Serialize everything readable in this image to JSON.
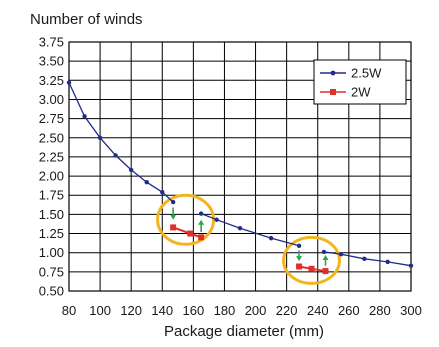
{
  "chart_data": {
    "type": "line",
    "title": "Number of winds",
    "xlabel": "Package diameter (mm)",
    "ylabel": "",
    "xlim": [
      80,
      300
    ],
    "ylim": [
      0.5,
      3.75
    ],
    "grid": true,
    "legend_position": "top-right",
    "x_ticks": [
      "80",
      "100",
      "120",
      "140",
      "160",
      "180",
      "200",
      "220",
      "240",
      "260",
      "280",
      "300"
    ],
    "y_ticks": [
      "0.50",
      "0.75",
      "1.00",
      "1.25",
      "1.50",
      "1.75",
      "2.00",
      "2.25",
      "2.50",
      "2.75",
      "3.00",
      "3.25",
      "3.50",
      "3.75"
    ],
    "series": [
      {
        "name": "2.5W",
        "color": "#1f2d8c",
        "marker": "circle",
        "segments": [
          [
            [
              80,
              3.22
            ],
            [
              90,
              2.78
            ],
            [
              100,
              2.5
            ],
            [
              110,
              2.27
            ],
            [
              120,
              2.08
            ],
            [
              130,
              1.92
            ],
            [
              140,
              1.79
            ],
            [
              147,
              1.66
            ]
          ],
          [
            [
              165,
              1.51
            ],
            [
              175,
              1.43
            ],
            [
              190,
              1.32
            ],
            [
              210,
              1.19
            ],
            [
              228,
              1.09
            ]
          ],
          [
            [
              244,
              1.01
            ],
            [
              255,
              0.98
            ],
            [
              270,
              0.92
            ],
            [
              285,
              0.88
            ],
            [
              300,
              0.83
            ]
          ]
        ]
      },
      {
        "name": "2W",
        "color": "#e0302a",
        "marker": "square",
        "segments": [
          [
            [
              147,
              1.33
            ],
            [
              158,
              1.25
            ],
            [
              165,
              1.2
            ]
          ],
          [
            [
              228,
              0.82
            ],
            [
              236,
              0.79
            ],
            [
              245,
              0.76
            ]
          ]
        ]
      }
    ],
    "annotations": {
      "circle_color": "#f2b51d",
      "arrow_color": "#2aa64a",
      "ellipses": [
        {
          "cx": 155,
          "cy": 1.43,
          "rx": 18,
          "ry": 0.32
        },
        {
          "cx": 236,
          "cy": 0.9,
          "rx": 18,
          "ry": 0.3
        }
      ],
      "arrows": [
        {
          "x": 147,
          "from": 1.59,
          "to": 1.43
        },
        {
          "x": 165,
          "from": 1.27,
          "to": 1.43
        },
        {
          "x": 228,
          "from": 1.03,
          "to": 0.89
        },
        {
          "x": 245,
          "from": 0.83,
          "to": 0.97
        }
      ]
    }
  }
}
